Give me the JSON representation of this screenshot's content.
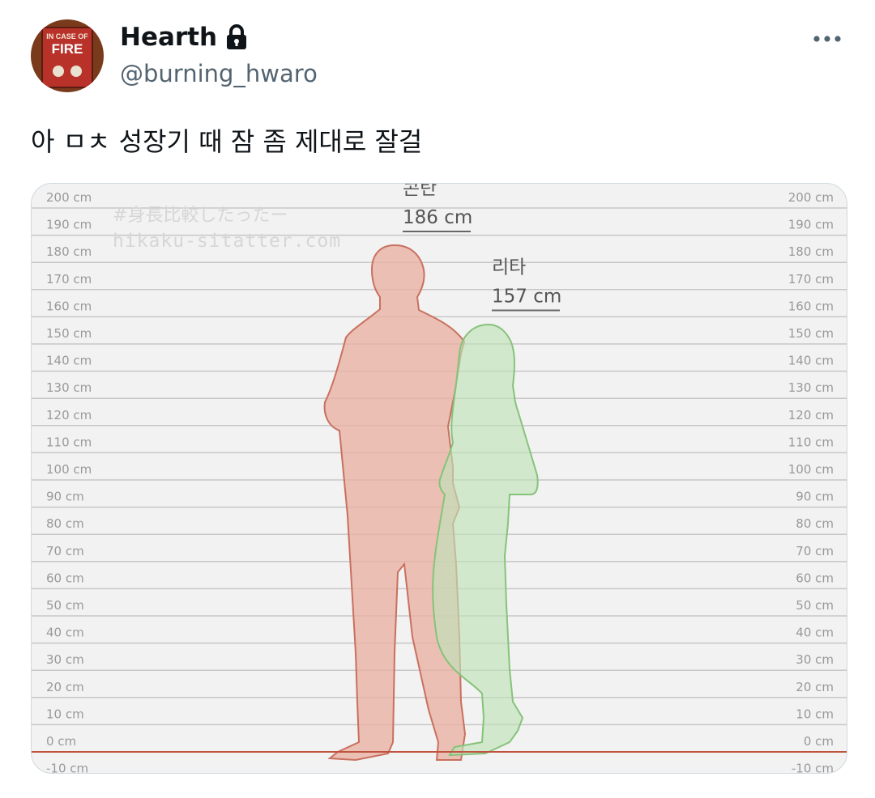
{
  "tweet": {
    "display_name": "Hearth",
    "handle": "@burning_hwaro",
    "text": "아 ㅁㅊ 성장기 때 잠 좀 제대로 잘걸"
  },
  "avatar": {
    "line1": "IN CASE OF",
    "line2": "FIRE"
  },
  "icons": {
    "lock": "lock-icon",
    "more": "more-icon"
  },
  "colors": {
    "text": "#0f1419",
    "secondary": "#536471",
    "border": "#cfd9de",
    "person1_fill": "#e8b1a4",
    "person1_stroke": "#c9705e",
    "person2_fill": "#bfe2b8",
    "person2_stroke": "#86c37a",
    "ground_line": "#c0533f"
  },
  "media": {
    "watermark_line1": "#身長比較したったー",
    "watermark_line2": "hikaku-sitatter.com"
  },
  "chart_data": {
    "type": "bar",
    "categories": [
      "콘탄",
      "리타"
    ],
    "series": [
      {
        "values": [
          186,
          157
        ]
      }
    ],
    "value_labels": [
      "186 cm",
      "157 cm"
    ],
    "ylim": [
      -10,
      200
    ],
    "ytick_step": 10,
    "ytick_labels": [
      "200 cm",
      "190 cm",
      "180 cm",
      "170 cm",
      "160 cm",
      "150 cm",
      "140 cm",
      "130 cm",
      "120 cm",
      "110 cm",
      "100 cm",
      "90 cm",
      "80 cm",
      "70 cm",
      "60 cm",
      "50 cm",
      "40 cm",
      "30 cm",
      "20 cm",
      "10 cm",
      "0 cm",
      "-10 cm"
    ],
    "grid": true
  }
}
